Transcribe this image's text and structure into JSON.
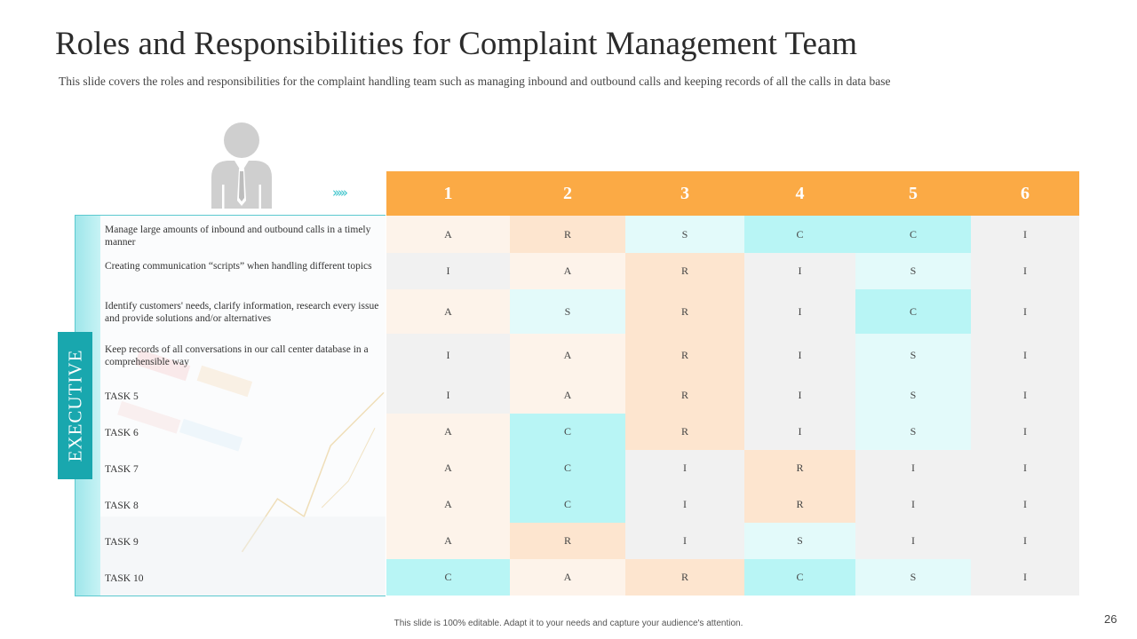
{
  "title": "Roles and Responsibilities for Complaint Management Team",
  "subtitle": "This slide covers the roles and responsibilities for the complaint handling team such as managing inbound and outbound calls and  keeping records of all the calls in data base",
  "role_label": "EXECUTIVE",
  "person_icon": "user-business-icon",
  "arrow_icon": "chevrons-right-icon",
  "colors": {
    "header": "#fbaa45",
    "teal": "#19a7ae",
    "cyan": "#b8f5f5",
    "peach": "#fde5cf"
  },
  "columns": [
    "1",
    "2",
    "3",
    "4",
    "5",
    "6"
  ],
  "tasks": [
    "Manage large amounts of inbound and outbound calls in a timely manner",
    "Creating  communication “scripts” when handling different topics",
    "Identify customers' needs, clarify information, research every  issue and provide solutions and/or alternatives",
    "Keep records of all conversations in our call center database in a comprehensible way",
    "TASK 5",
    "TASK 6",
    "TASK 7",
    "TASK 8",
    "TASK 9",
    "TASK 10"
  ],
  "matrix": [
    [
      "A",
      "R",
      "S",
      "C",
      "C",
      "I"
    ],
    [
      "I",
      "A",
      "R",
      "I",
      "S",
      "I"
    ],
    [
      "A",
      "S",
      "R",
      "I",
      "C",
      "I"
    ],
    [
      "I",
      "A",
      "R",
      "I",
      "S",
      "I"
    ],
    [
      "I",
      "A",
      "R",
      "I",
      "S",
      "I"
    ],
    [
      "A",
      "C",
      "R",
      "I",
      "S",
      "I"
    ],
    [
      "A",
      "C",
      "I",
      "R",
      "I",
      "I"
    ],
    [
      "A",
      "C",
      "I",
      "R",
      "I",
      "I"
    ],
    [
      "A",
      "R",
      "I",
      "S",
      "I",
      "I"
    ],
    [
      "C",
      "A",
      "R",
      "C",
      "S",
      "I"
    ]
  ],
  "footer": "This slide is 100% editable. Adapt it to your needs and capture your audience's attention.",
  "page_number": "26"
}
